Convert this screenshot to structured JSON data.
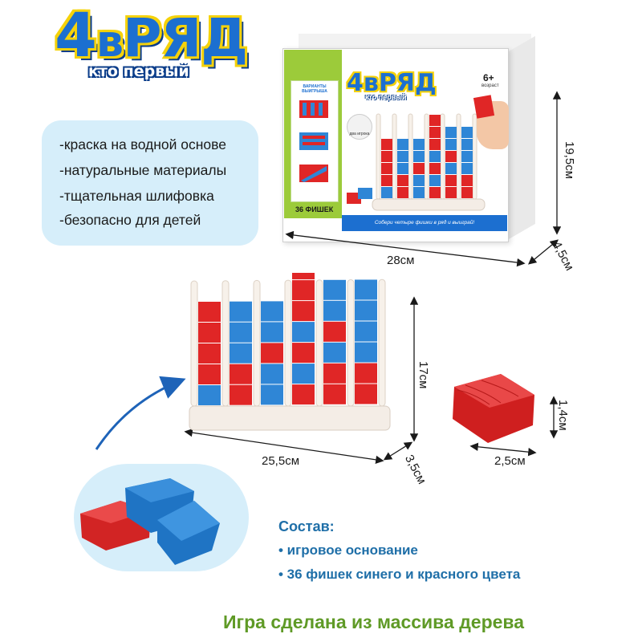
{
  "logo": {
    "title_num": "4",
    "title_small": "в",
    "title_rest": "РЯД",
    "subtitle": "кто первый"
  },
  "features": [
    "-краска на водной основе",
    "-натуральные материалы",
    "-тщательная шлифовка",
    "-безопасно для детей"
  ],
  "box": {
    "title": "4вРЯД",
    "subtitle": "кто первый",
    "age": "6+",
    "age_label": "возраст",
    "variants_label": "ВАРИАНТЫ ВЫИГРЫША",
    "players_label": "два игрока",
    "chips_label": "36 ФИШЕК",
    "tagline": "Собери четыре фишки в ряд и выиграй!"
  },
  "dimensions": {
    "box_width": "28см",
    "box_height": "19,5см",
    "box_depth": "4,5см",
    "stand_width": "25,5см",
    "stand_height": "17см",
    "stand_depth": "3,5см",
    "chip_width": "2,5см",
    "chip_height": "1,4см"
  },
  "composition": {
    "title": "Состав:",
    "items": [
      "• игровое основание",
      "• 36 фишек синего и красного цвета"
    ]
  },
  "footer": "Игра сделана из массива дерева",
  "colors": {
    "red": "#e02626",
    "blue": "#2f86d6",
    "brand_blue": "#1c6fd0",
    "yellow_outline": "#f5d20a",
    "panel_bg": "#d6eefa",
    "composition_text": "#1f6fa8",
    "footer_text": "#5f9a26"
  },
  "stand_columns": [
    [
      "blue",
      "red",
      "red",
      "red",
      "red"
    ],
    [
      "red",
      "red",
      "blue",
      "blue",
      "blue"
    ],
    [
      "blue",
      "blue",
      "red",
      "blue",
      "blue"
    ],
    [
      "red",
      "blue",
      "red",
      "blue",
      "red",
      "red",
      "red"
    ],
    [
      "red",
      "red",
      "blue",
      "red",
      "blue",
      "blue"
    ],
    [
      "red",
      "red",
      "blue",
      "blue",
      "blue",
      "blue"
    ]
  ]
}
